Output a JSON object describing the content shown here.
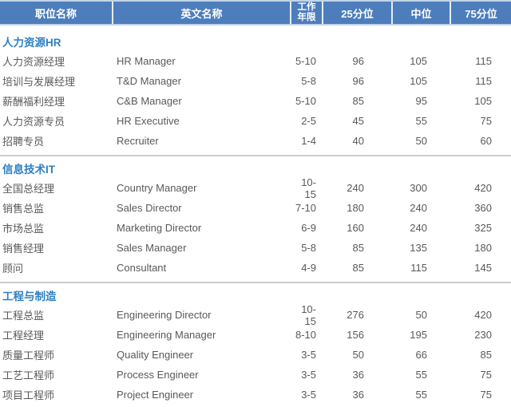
{
  "colors": {
    "background": "#ffffff",
    "header_bg": "#4d7ebb",
    "header_text": "#ffffff",
    "header_divider": "#e4ecf6",
    "header_edge": "#c4d4ea",
    "section_title": "#2e7fc1",
    "body_text": "#595959",
    "row_divider": "#cccccc"
  },
  "table": {
    "columns": [
      {
        "label": "职位名称"
      },
      {
        "label": "英文名称"
      },
      {
        "label": "工作年限",
        "label_lines": [
          "工作",
          "年限"
        ]
      },
      {
        "label": "25分位"
      },
      {
        "label": "中位"
      },
      {
        "label": "75分位"
      }
    ],
    "sections": [
      {
        "title": "人力资源HR",
        "rows": [
          {
            "position": "人力资源经理",
            "english": "HR Manager",
            "years": "5-10",
            "p25": "96",
            "median": "105",
            "p75": "115"
          },
          {
            "position": "培训与发展经理",
            "english": "T&D Manager",
            "years": "5-8",
            "p25": "96",
            "median": "105",
            "p75": "115"
          },
          {
            "position": "薪酬福利经理",
            "english": "C&B Manager",
            "years": "5-10",
            "p25": "85",
            "median": "95",
            "p75": "105"
          },
          {
            "position": "人力资源专员",
            "english": "HR Executive",
            "years": "2-5",
            "p25": "45",
            "median": "55",
            "p75": "75"
          },
          {
            "position": "招聘专员",
            "english": "Recruiter",
            "years": "1-4",
            "p25": "40",
            "median": "50",
            "p75": "60"
          }
        ]
      },
      {
        "title": "信息技术IT",
        "rows": [
          {
            "position": "全国总经理",
            "english": "Country Manager",
            "years": "10-15",
            "p25": "240",
            "median": "300",
            "p75": "420"
          },
          {
            "position": "销售总监",
            "english": "Sales Director",
            "years": "7-10",
            "p25": "180",
            "median": "240",
            "p75": "360"
          },
          {
            "position": "市场总监",
            "english": "Marketing Director",
            "years": "6-9",
            "p25": "160",
            "median": "240",
            "p75": "325"
          },
          {
            "position": "销售经理",
            "english": "Sales Manager",
            "years": "5-8",
            "p25": "85",
            "median": "135",
            "p75": "180"
          },
          {
            "position": "顾问",
            "english": "Consultant",
            "years": "4-9",
            "p25": "85",
            "median": "115",
            "p75": "145"
          }
        ]
      },
      {
        "title": "工程与制造",
        "rows": [
          {
            "position": "工程总监",
            "english": "Engineering Director",
            "years": "10-15",
            "p25": "276",
            "median": "50",
            "p75": "420"
          },
          {
            "position": "工程经理",
            "english": "Engineering Manager",
            "years": "8-10",
            "p25": "156",
            "median": "195",
            "p75": "230"
          },
          {
            "position": "质量工程师",
            "english": "Quality Engineer",
            "years": "3-5",
            "p25": "50",
            "median": "66",
            "p75": "85"
          },
          {
            "position": "工艺工程师",
            "english": "Process Engineer",
            "years": "3-5",
            "p25": "36",
            "median": "55",
            "p75": "75"
          },
          {
            "position": "项目工程师",
            "english": "Project Engineer",
            "years": "3-5",
            "p25": "36",
            "median": "55",
            "p75": "75"
          }
        ]
      }
    ]
  }
}
